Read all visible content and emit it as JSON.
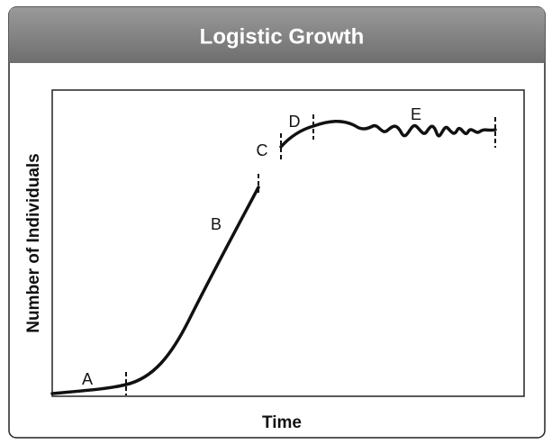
{
  "header": {
    "title": "Logistic Growth"
  },
  "axes": {
    "x_label": "Time",
    "y_label": "Number of Individuals"
  },
  "phases": [
    {
      "label": "A"
    },
    {
      "label": "B"
    },
    {
      "label": "C"
    },
    {
      "label": "D"
    },
    {
      "label": "E"
    }
  ]
}
